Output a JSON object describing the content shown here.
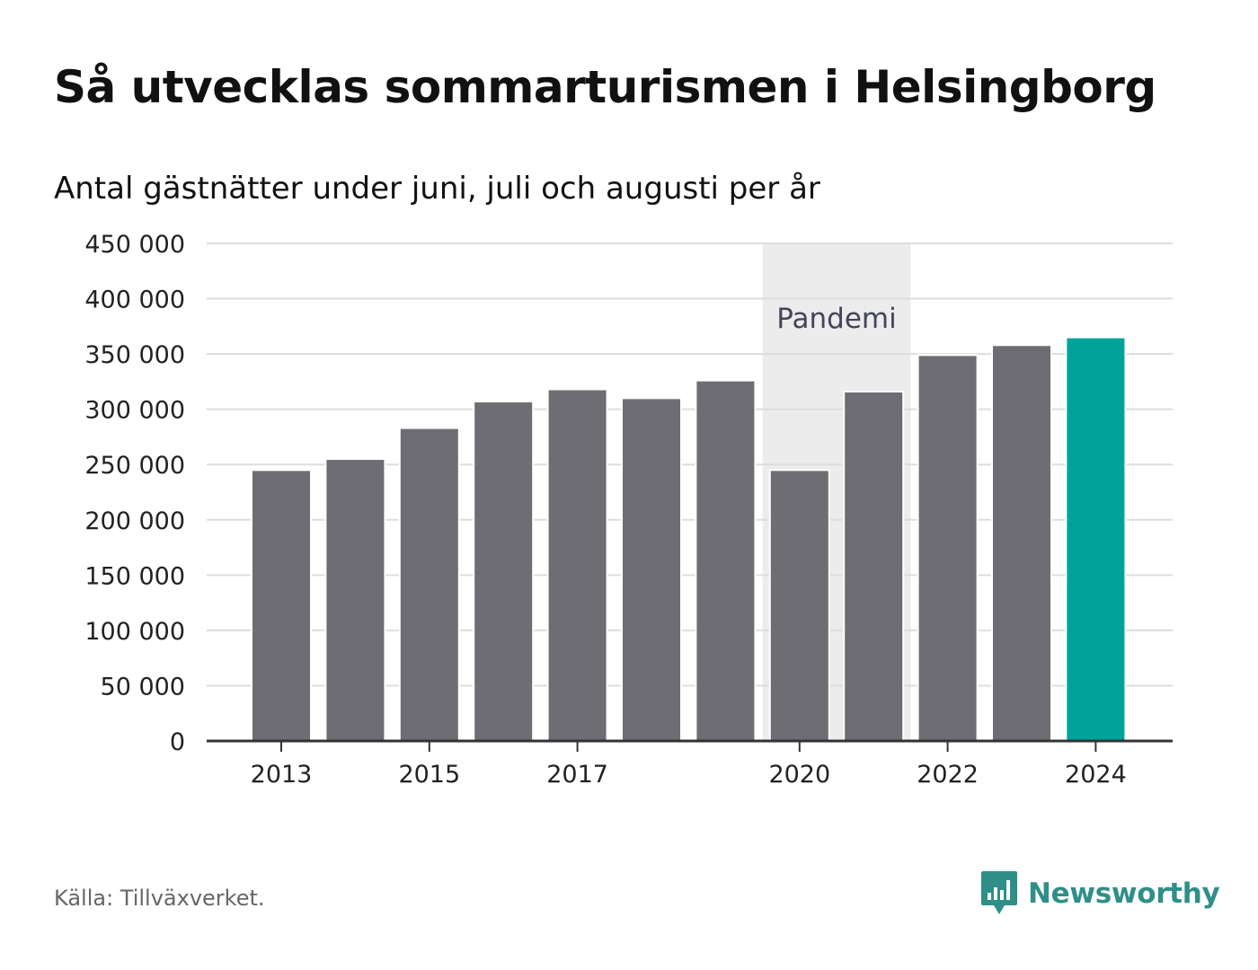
{
  "title": "Så utvecklas sommarturismen i Helsingborg",
  "subtitle": "Antal gästnätter under juni, juli och augusti per år",
  "source": "Källa: Tillväxverket.",
  "brand": "Newsworthy",
  "colors": {
    "bar": "#6e6d73",
    "highlight": "#00a39a",
    "pandemic_band": "#ececec",
    "grid": "#dddddd",
    "axis": "#333333",
    "brand": "#2f8f88"
  },
  "chart_data": {
    "type": "bar",
    "title": "Så utvecklas sommarturismen i Helsingborg",
    "subtitle": "Antal gästnätter under juni, juli och augusti per år",
    "categories": [
      "2013",
      "2014",
      "2015",
      "2016",
      "2017",
      "2018",
      "2019",
      "2020",
      "2021",
      "2022",
      "2023",
      "2024"
    ],
    "values": [
      245000,
      255000,
      283000,
      307000,
      318000,
      310000,
      326000,
      245000,
      316000,
      349000,
      358000,
      365000
    ],
    "highlight_category": "2024",
    "x_tick_labels": [
      "2013",
      "2015",
      "2017",
      "2020",
      "2022",
      "2024"
    ],
    "y_tick_labels": [
      "0",
      "50 000",
      "100 000",
      "150 000",
      "200 000",
      "250 000",
      "300 000",
      "350 000",
      "400 000",
      "450 000"
    ],
    "ylim": [
      0,
      450000
    ],
    "y_tick_step": 50000,
    "xlabel": "",
    "ylabel": "",
    "grid": true,
    "annotation": {
      "label": "Pandemi",
      "from": "2020",
      "to": "2021"
    }
  }
}
